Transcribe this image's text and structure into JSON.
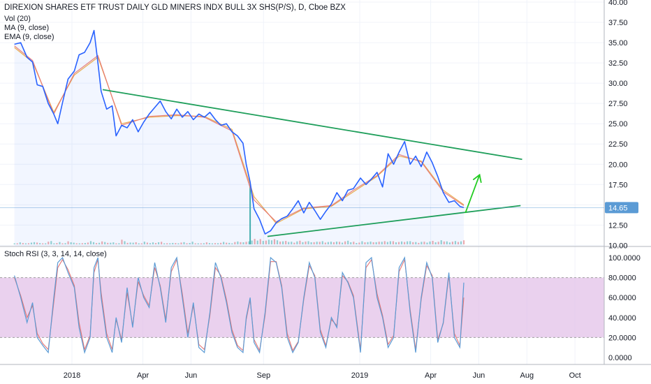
{
  "header": {
    "title": "DIREXION SHARES ETF TRUST DAILY GLD MINERS INDX BULL 3X SHS(P/S), D, Cboe BZX",
    "indicators": [
      "Vol (20)",
      "MA (9, close)",
      "EMA (9, close)"
    ]
  },
  "colors": {
    "price_line": "#2962ff",
    "ma_line": "#e8a33c",
    "ema_line": "#e57373",
    "trendline": "#1e9e5a",
    "arrow": "#22cc22",
    "rsi_band": "#e1bee7",
    "rsi_k": "#5b9bd5",
    "rsi_d": "#e57373",
    "price_tag": "#5b9bd5"
  },
  "chart_data": [
    {
      "type": "line",
      "panel": "price",
      "title": "DIREXION SHARES ETF TRUST DAILY GLD MINERS INDX BULL 3X SHS(P/S), D, Cboe BZX",
      "x_tick_labels": [
        "2018",
        "Apr",
        "Jun",
        "Sep",
        "2019",
        "Apr",
        "Jun",
        "Aug",
        "Oct"
      ],
      "y_tick_labels": [
        "10.00",
        "12.50",
        "15.00",
        "17.50",
        "20.00",
        "22.50",
        "25.00",
        "27.50",
        "30.00",
        "32.50",
        "35.00",
        "37.50",
        "40.00"
      ],
      "ylim": [
        9.0,
        40.0
      ],
      "last_price": "14.65",
      "series": [
        {
          "role": "close",
          "x": [
            "2017-10-20",
            "2017-10-28",
            "2017-11-05",
            "2017-11-12",
            "2017-11-18",
            "2017-11-25",
            "2017-12-02",
            "2017-12-09",
            "2017-12-14",
            "2017-12-20",
            "2017-12-27",
            "2018-01-04",
            "2018-01-10",
            "2018-01-17",
            "2018-01-24",
            "2018-01-29",
            "2018-02-03",
            "2018-02-07",
            "2018-02-14",
            "2018-02-21",
            "2018-02-26",
            "2018-03-05",
            "2018-03-12",
            "2018-03-19",
            "2018-03-26",
            "2018-04-02",
            "2018-04-09",
            "2018-04-16",
            "2018-04-23",
            "2018-04-30",
            "2018-05-07",
            "2018-05-14",
            "2018-05-21",
            "2018-05-28",
            "2018-06-04",
            "2018-06-11",
            "2018-06-18",
            "2018-06-25",
            "2018-07-02",
            "2018-07-09",
            "2018-07-16",
            "2018-07-23",
            "2018-07-30",
            "2018-08-06",
            "2018-08-10",
            "2018-08-15",
            "2018-08-20",
            "2018-08-27",
            "2018-09-03",
            "2018-09-10",
            "2018-09-17",
            "2018-09-24",
            "2018-10-01",
            "2018-10-08",
            "2018-10-15",
            "2018-10-22",
            "2018-10-29",
            "2018-11-05",
            "2018-11-12",
            "2018-11-19",
            "2018-11-26",
            "2018-12-03",
            "2018-12-10",
            "2018-12-17",
            "2018-12-24",
            "2019-01-02",
            "2019-01-09",
            "2019-01-16",
            "2019-01-23",
            "2019-01-30",
            "2019-02-06",
            "2019-02-13",
            "2019-02-20",
            "2019-02-27",
            "2019-03-06",
            "2019-03-13",
            "2019-03-20",
            "2019-03-27",
            "2019-04-03",
            "2019-04-10",
            "2019-04-17",
            "2019-04-24",
            "2019-05-01",
            "2019-05-08",
            "2019-05-13"
          ],
          "values": [
            34.8,
            35.0,
            33.2,
            32.6,
            29.8,
            29.6,
            27.5,
            26.2,
            25.0,
            27.6,
            30.5,
            31.5,
            33.5,
            33.8,
            35.0,
            36.5,
            32.5,
            29.0,
            26.8,
            27.2,
            23.5,
            24.8,
            24.5,
            25.5,
            24.0,
            25.2,
            26.2,
            27.0,
            27.8,
            26.5,
            25.6,
            26.8,
            25.8,
            26.5,
            25.5,
            26.2,
            25.8,
            26.4,
            25.5,
            24.8,
            25.0,
            24.0,
            23.5,
            22.6,
            20.0,
            17.8,
            14.5,
            13.2,
            11.4,
            11.8,
            12.8,
            13.3,
            13.6,
            14.5,
            15.5,
            14.0,
            15.3,
            14.3,
            13.2,
            14.2,
            15.1,
            16.5,
            15.5,
            16.8,
            17.0,
            18.3,
            17.5,
            18.2,
            19.0,
            17.2,
            21.3,
            20.0,
            21.5,
            22.8,
            20.0,
            21.0,
            19.7,
            21.5,
            20.2,
            18.5,
            16.5,
            15.3,
            15.5,
            14.8,
            14.65
          ]
        },
        {
          "role": "ma",
          "name": "MA (9, close)",
          "x": [
            "2017-10-20",
            "2017-11-12",
            "2017-12-09",
            "2018-01-04",
            "2018-02-03",
            "2018-03-05",
            "2018-04-09",
            "2018-05-14",
            "2018-06-18",
            "2018-07-23",
            "2018-08-20",
            "2018-09-17",
            "2018-10-22",
            "2018-11-26",
            "2018-12-24",
            "2019-01-23",
            "2019-02-20",
            "2019-03-20",
            "2019-04-17",
            "2019-05-13"
          ],
          "values": [
            34.4,
            32.6,
            26.4,
            31.0,
            33.2,
            25.0,
            25.8,
            26.0,
            25.9,
            24.3,
            16.0,
            12.7,
            14.5,
            14.8,
            16.6,
            18.5,
            21.0,
            20.4,
            16.8,
            15.0
          ]
        },
        {
          "role": "ema",
          "name": "EMA (9, close)",
          "x": [
            "2017-10-20",
            "2017-11-12",
            "2017-12-09",
            "2018-01-04",
            "2018-02-03",
            "2018-03-05",
            "2018-04-09",
            "2018-05-14",
            "2018-06-18",
            "2018-07-23",
            "2018-08-20",
            "2018-09-17",
            "2018-10-22",
            "2018-11-26",
            "2018-12-24",
            "2019-01-23",
            "2019-02-20",
            "2019-03-20",
            "2019-04-17",
            "2019-05-13"
          ],
          "values": [
            34.6,
            32.8,
            26.2,
            31.2,
            33.4,
            24.8,
            25.9,
            26.1,
            25.8,
            24.1,
            15.6,
            12.9,
            14.6,
            14.9,
            16.8,
            18.6,
            21.2,
            20.3,
            16.6,
            14.9
          ]
        }
      ],
      "volume": {
        "name": "Vol (20)",
        "unit": "relative",
        "values": [
          0.12,
          0.18,
          0.1,
          0.22,
          0.15,
          0.09,
          0.3,
          0.14,
          0.2,
          0.12,
          0.25,
          0.16,
          0.11,
          0.19,
          0.28,
          0.13,
          0.35,
          0.22,
          0.18,
          0.12,
          0.4,
          0.15,
          0.2,
          0.1,
          0.24,
          0.13,
          0.17,
          0.21,
          0.11,
          0.16,
          0.12,
          0.19,
          0.14,
          0.22,
          0.1,
          0.13,
          0.18,
          0.11,
          0.15,
          0.2,
          0.14,
          0.26,
          0.3,
          0.22,
          0.38,
          0.45,
          0.5,
          0.42,
          0.55,
          0.35,
          0.3,
          0.28,
          0.25,
          0.33,
          0.3,
          0.27,
          0.22,
          0.3,
          0.26,
          0.24,
          0.29,
          0.22,
          0.3,
          0.25,
          0.2,
          0.28,
          0.24,
          0.27,
          0.22,
          0.3,
          0.35,
          0.28,
          0.25,
          0.3,
          0.26,
          0.22,
          0.28,
          0.24,
          0.3,
          0.26,
          0.34,
          0.28,
          0.3,
          0.32,
          0.35
        ],
        "spike": {
          "x": "2018-08-15",
          "value": 2.6
        }
      },
      "annotations": [
        {
          "type": "trendline",
          "from": {
            "x": "2018-02-09",
            "y": 29.2
          },
          "to": {
            "x": "2019-07-26",
            "y": 20.6
          }
        },
        {
          "type": "trendline",
          "from": {
            "x": "2018-09-06",
            "y": 11.1
          },
          "to": {
            "x": "2019-07-24",
            "y": 14.9
          }
        },
        {
          "type": "arrow",
          "from": {
            "x": "2019-05-15",
            "y": 14.0
          },
          "to": {
            "x": "2019-06-02",
            "y": 18.7
          }
        }
      ]
    },
    {
      "type": "line",
      "panel": "stoch_rsi",
      "title": "Stoch RSI (3, 3, 14, 14, close)",
      "y_tick_labels": [
        "0.0000",
        "20.0000",
        "40.0000",
        "60.0000",
        "80.0000",
        "100.0000"
      ],
      "ylim": [
        -10,
        110
      ],
      "band": [
        20,
        80
      ],
      "x": [
        "2017-10-20",
        "2017-10-28",
        "2017-11-05",
        "2017-11-12",
        "2017-11-18",
        "2017-11-25",
        "2017-12-02",
        "2017-12-09",
        "2017-12-14",
        "2017-12-20",
        "2017-12-27",
        "2018-01-04",
        "2018-01-10",
        "2018-01-17",
        "2018-01-24",
        "2018-01-29",
        "2018-02-03",
        "2018-02-07",
        "2018-02-14",
        "2018-02-21",
        "2018-02-26",
        "2018-03-05",
        "2018-03-12",
        "2018-03-19",
        "2018-03-26",
        "2018-04-02",
        "2018-04-09",
        "2018-04-16",
        "2018-04-23",
        "2018-04-30",
        "2018-05-07",
        "2018-05-14",
        "2018-05-21",
        "2018-05-28",
        "2018-06-04",
        "2018-06-11",
        "2018-06-18",
        "2018-06-25",
        "2018-07-02",
        "2018-07-09",
        "2018-07-16",
        "2018-07-23",
        "2018-07-30",
        "2018-08-06",
        "2018-08-10",
        "2018-08-15",
        "2018-08-20",
        "2018-08-27",
        "2018-09-03",
        "2018-09-10",
        "2018-09-17",
        "2018-09-24",
        "2018-10-01",
        "2018-10-08",
        "2018-10-15",
        "2018-10-22",
        "2018-10-29",
        "2018-11-05",
        "2018-11-12",
        "2018-11-19",
        "2018-11-26",
        "2018-12-03",
        "2018-12-10",
        "2018-12-17",
        "2018-12-24",
        "2019-01-02",
        "2019-01-09",
        "2019-01-16",
        "2019-01-23",
        "2019-01-30",
        "2019-02-06",
        "2019-02-13",
        "2019-02-20",
        "2019-02-27",
        "2019-03-06",
        "2019-03-13",
        "2019-03-20",
        "2019-03-27",
        "2019-04-03",
        "2019-04-10",
        "2019-04-17",
        "2019-04-24",
        "2019-05-01",
        "2019-05-08",
        "2019-05-13"
      ],
      "series": [
        {
          "role": "k",
          "values": [
            82,
            60,
            35,
            55,
            20,
            12,
            5,
            60,
            95,
            100,
            85,
            70,
            30,
            5,
            20,
            90,
            100,
            60,
            20,
            5,
            40,
            15,
            70,
            30,
            80,
            60,
            50,
            95,
            70,
            35,
            90,
            100,
            60,
            20,
            55,
            10,
            5,
            45,
            95,
            80,
            55,
            25,
            10,
            5,
            40,
            60,
            15,
            5,
            45,
            100,
            95,
            70,
            20,
            5,
            15,
            60,
            95,
            80,
            25,
            10,
            40,
            30,
            85,
            75,
            60,
            5,
            95,
            100,
            60,
            40,
            10,
            20,
            90,
            100,
            45,
            5,
            60,
            95,
            80,
            15,
            35,
            85,
            20,
            10,
            75
          ]
        },
        {
          "role": "d",
          "values": [
            80,
            62,
            40,
            52,
            24,
            14,
            8,
            55,
            90,
            98,
            88,
            72,
            35,
            8,
            22,
            85,
            98,
            65,
            24,
            8,
            38,
            18,
            65,
            32,
            76,
            62,
            52,
            90,
            72,
            38,
            86,
            98,
            64,
            24,
            52,
            13,
            8,
            42,
            90,
            82,
            58,
            28,
            12,
            7,
            38,
            58,
            18,
            7,
            42,
            96,
            96,
            72,
            24,
            7,
            16,
            58,
            92,
            82,
            28,
            12,
            38,
            32,
            82,
            76,
            62,
            8,
            90,
            98,
            64,
            42,
            13,
            22,
            86,
            98,
            48,
            8,
            58,
            92,
            82,
            18,
            34,
            82,
            24,
            12,
            60
          ]
        }
      ]
    }
  ]
}
